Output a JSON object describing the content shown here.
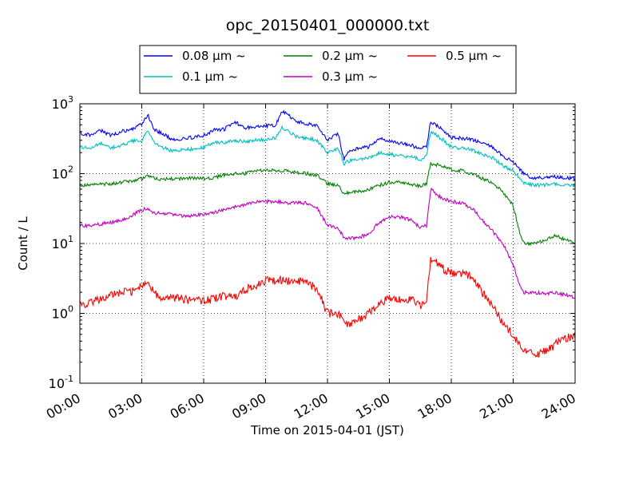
{
  "chart_data": {
    "type": "line",
    "title": "opc_20150401_000000.txt",
    "xlabel": "Time on 2015-04-01 (JST)",
    "ylabel": "Count / L",
    "xscale": "linear",
    "yscale": "log",
    "xlim_hours": [
      0,
      24
    ],
    "ylim": [
      0.1,
      1000
    ],
    "grid": true,
    "grid_style": "dotted",
    "legend_placement": "top-center, outside plot",
    "x_tick_labels": [
      "00:00",
      "03:00",
      "06:00",
      "09:00",
      "12:00",
      "15:00",
      "18:00",
      "21:00",
      "24:00"
    ],
    "y_tick_labels": [
      {
        "base": "10",
        "exp": "-1"
      },
      {
        "base": "10",
        "exp": "0"
      },
      {
        "base": "10",
        "exp": "1"
      },
      {
        "base": "10",
        "exp": "2"
      },
      {
        "base": "10",
        "exp": "3"
      }
    ],
    "series": [
      {
        "name": "0.08 μm ~",
        "color": "#0000ff",
        "points": [
          [
            0,
            380
          ],
          [
            0.5,
            360
          ],
          [
            1,
            420
          ],
          [
            1.5,
            350
          ],
          [
            2,
            400
          ],
          [
            2.5,
            430
          ],
          [
            3,
            520
          ],
          [
            3.3,
            700
          ],
          [
            3.6,
            420
          ],
          [
            4,
            380
          ],
          [
            4.5,
            300
          ],
          [
            5,
            320
          ],
          [
            5.5,
            330
          ],
          [
            6,
            350
          ],
          [
            6.5,
            420
          ],
          [
            7,
            430
          ],
          [
            7.5,
            560
          ],
          [
            8,
            450
          ],
          [
            8.5,
            470
          ],
          [
            9,
            480
          ],
          [
            9.5,
            500
          ],
          [
            9.8,
            800
          ],
          [
            10,
            720
          ],
          [
            10.5,
            560
          ],
          [
            11,
            520
          ],
          [
            11.5,
            480
          ],
          [
            12,
            300
          ],
          [
            12.5,
            380
          ],
          [
            12.8,
            160
          ],
          [
            13,
            210
          ],
          [
            13.5,
            230
          ],
          [
            14,
            240
          ],
          [
            14.5,
            320
          ],
          [
            15,
            290
          ],
          [
            15.5,
            270
          ],
          [
            16,
            260
          ],
          [
            16.5,
            220
          ],
          [
            16.8,
            250
          ],
          [
            17,
            540
          ],
          [
            17.5,
            450
          ],
          [
            18,
            330
          ],
          [
            18.5,
            320
          ],
          [
            19,
            310
          ],
          [
            19.5,
            270
          ],
          [
            20,
            240
          ],
          [
            20.5,
            180
          ],
          [
            21,
            150
          ],
          [
            21.5,
            100
          ],
          [
            22,
            85
          ],
          [
            23,
            90
          ],
          [
            24,
            85
          ]
        ]
      },
      {
        "name": "0.1 μm ~",
        "color": "#00bfbf",
        "points": [
          [
            0,
            240
          ],
          [
            0.5,
            230
          ],
          [
            1,
            270
          ],
          [
            1.5,
            235
          ],
          [
            2,
            250
          ],
          [
            2.5,
            290
          ],
          [
            3,
            300
          ],
          [
            3.3,
            430
          ],
          [
            3.6,
            280
          ],
          [
            4,
            240
          ],
          [
            4.5,
            210
          ],
          [
            5,
            220
          ],
          [
            5.5,
            225
          ],
          [
            6,
            240
          ],
          [
            6.5,
            280
          ],
          [
            7,
            280
          ],
          [
            7.5,
            300
          ],
          [
            8,
            290
          ],
          [
            8.5,
            300
          ],
          [
            9,
            310
          ],
          [
            9.5,
            330
          ],
          [
            9.8,
            450
          ],
          [
            10,
            420
          ],
          [
            10.5,
            340
          ],
          [
            11,
            320
          ],
          [
            11.5,
            300
          ],
          [
            12,
            200
          ],
          [
            12.5,
            230
          ],
          [
            12.8,
            140
          ],
          [
            13,
            150
          ],
          [
            13.5,
            160
          ],
          [
            14,
            170
          ],
          [
            14.5,
            200
          ],
          [
            15,
            190
          ],
          [
            15.5,
            180
          ],
          [
            16,
            175
          ],
          [
            16.5,
            160
          ],
          [
            16.8,
            180
          ],
          [
            17,
            400
          ],
          [
            17.5,
            320
          ],
          [
            18,
            240
          ],
          [
            18.5,
            230
          ],
          [
            19,
            220
          ],
          [
            19.5,
            190
          ],
          [
            20,
            170
          ],
          [
            20.5,
            130
          ],
          [
            21,
            110
          ],
          [
            21.5,
            75
          ],
          [
            22,
            68
          ],
          [
            23,
            70
          ],
          [
            24,
            68
          ]
        ]
      },
      {
        "name": "0.2 μm ~",
        "color": "#008000",
        "points": [
          [
            0,
            68
          ],
          [
            0.5,
            68
          ],
          [
            1,
            70
          ],
          [
            1.5,
            72
          ],
          [
            2,
            75
          ],
          [
            2.5,
            78
          ],
          [
            3,
            85
          ],
          [
            3.3,
            95
          ],
          [
            3.6,
            85
          ],
          [
            4,
            82
          ],
          [
            4.5,
            85
          ],
          [
            5,
            85
          ],
          [
            5.5,
            87
          ],
          [
            6,
            85
          ],
          [
            6.5,
            88
          ],
          [
            7,
            95
          ],
          [
            7.5,
            100
          ],
          [
            8,
            100
          ],
          [
            8.5,
            110
          ],
          [
            9,
            112
          ],
          [
            9.5,
            110
          ],
          [
            10,
            110
          ],
          [
            10.5,
            105
          ],
          [
            11,
            100
          ],
          [
            11.5,
            95
          ],
          [
            12,
            72
          ],
          [
            12.5,
            68
          ],
          [
            12.8,
            52
          ],
          [
            13,
            53
          ],
          [
            13.5,
            55
          ],
          [
            14,
            60
          ],
          [
            14.5,
            68
          ],
          [
            15,
            75
          ],
          [
            15.5,
            75
          ],
          [
            16,
            72
          ],
          [
            16.5,
            65
          ],
          [
            16.8,
            72
          ],
          [
            17,
            140
          ],
          [
            17.5,
            130
          ],
          [
            18,
            115
          ],
          [
            18.5,
            110
          ],
          [
            19,
            100
          ],
          [
            19.5,
            85
          ],
          [
            20,
            75
          ],
          [
            20.5,
            55
          ],
          [
            21,
            35
          ],
          [
            21.3,
            15
          ],
          [
            21.5,
            10
          ],
          [
            22,
            10
          ],
          [
            22.5,
            11
          ],
          [
            23,
            13
          ],
          [
            24,
            10
          ]
        ]
      },
      {
        "name": "0.3 μm ~",
        "color": "#bf00bf",
        "points": [
          [
            0,
            18
          ],
          [
            0.5,
            18
          ],
          [
            1,
            19
          ],
          [
            1.5,
            20
          ],
          [
            2,
            21
          ],
          [
            2.5,
            25
          ],
          [
            3,
            30
          ],
          [
            3.3,
            32
          ],
          [
            3.6,
            27
          ],
          [
            4,
            27
          ],
          [
            4.5,
            26
          ],
          [
            5,
            25
          ],
          [
            5.5,
            25
          ],
          [
            6,
            26
          ],
          [
            6.5,
            28
          ],
          [
            7,
            30
          ],
          [
            7.5,
            33
          ],
          [
            8,
            36
          ],
          [
            8.5,
            40
          ],
          [
            9,
            40
          ],
          [
            9.5,
            40
          ],
          [
            10,
            38
          ],
          [
            10.5,
            38
          ],
          [
            11,
            38
          ],
          [
            11.5,
            32
          ],
          [
            12,
            18
          ],
          [
            12.5,
            17
          ],
          [
            12.8,
            12
          ],
          [
            13,
            12
          ],
          [
            13.5,
            12
          ],
          [
            14,
            14
          ],
          [
            14.5,
            20
          ],
          [
            15,
            24
          ],
          [
            15.5,
            24
          ],
          [
            16,
            22
          ],
          [
            16.5,
            17
          ],
          [
            16.8,
            18
          ],
          [
            17,
            60
          ],
          [
            17.5,
            45
          ],
          [
            18,
            40
          ],
          [
            18.5,
            38
          ],
          [
            19,
            32
          ],
          [
            19.5,
            22
          ],
          [
            20,
            15
          ],
          [
            20.5,
            10
          ],
          [
            21,
            5
          ],
          [
            21.3,
            2.5
          ],
          [
            21.5,
            2.0
          ],
          [
            22,
            2.0
          ],
          [
            22.5,
            1.9
          ],
          [
            23,
            2.0
          ],
          [
            24,
            1.7
          ]
        ]
      },
      {
        "name": "0.5 μm ~",
        "color": "#ff0000",
        "points": [
          [
            0,
            1.3
          ],
          [
            0.5,
            1.4
          ],
          [
            1,
            1.6
          ],
          [
            1.5,
            1.9
          ],
          [
            2,
            2.0
          ],
          [
            2.5,
            2.0
          ],
          [
            3,
            2.5
          ],
          [
            3.3,
            2.8
          ],
          [
            3.6,
            2.0
          ],
          [
            4,
            1.5
          ],
          [
            4.5,
            1.7
          ],
          [
            5,
            1.6
          ],
          [
            5.5,
            1.5
          ],
          [
            6,
            1.5
          ],
          [
            6.5,
            1.6
          ],
          [
            7,
            1.8
          ],
          [
            7.5,
            1.7
          ],
          [
            8,
            2.2
          ],
          [
            8.5,
            2.5
          ],
          [
            9,
            2.9
          ],
          [
            9.5,
            3.0
          ],
          [
            10,
            2.9
          ],
          [
            10.5,
            2.9
          ],
          [
            11,
            2.8
          ],
          [
            11.5,
            2.2
          ],
          [
            12,
            1.0
          ],
          [
            12.5,
            1.0
          ],
          [
            12.8,
            0.75
          ],
          [
            13,
            0.7
          ],
          [
            13.5,
            0.8
          ],
          [
            14,
            1.0
          ],
          [
            14.5,
            1.4
          ],
          [
            15,
            1.6
          ],
          [
            15.5,
            1.6
          ],
          [
            16,
            1.6
          ],
          [
            16.5,
            1.3
          ],
          [
            16.8,
            1.5
          ],
          [
            17,
            6.0
          ],
          [
            17.5,
            4.5
          ],
          [
            18,
            3.8
          ],
          [
            18.5,
            3.8
          ],
          [
            19,
            3.3
          ],
          [
            19.5,
            2.0
          ],
          [
            20,
            1.3
          ],
          [
            20.5,
            0.7
          ],
          [
            21,
            0.5
          ],
          [
            21.3,
            0.35
          ],
          [
            21.5,
            0.3
          ],
          [
            22,
            0.25
          ],
          [
            22.5,
            0.28
          ],
          [
            23,
            0.35
          ],
          [
            23.5,
            0.45
          ],
          [
            24,
            0.45
          ]
        ]
      }
    ]
  }
}
